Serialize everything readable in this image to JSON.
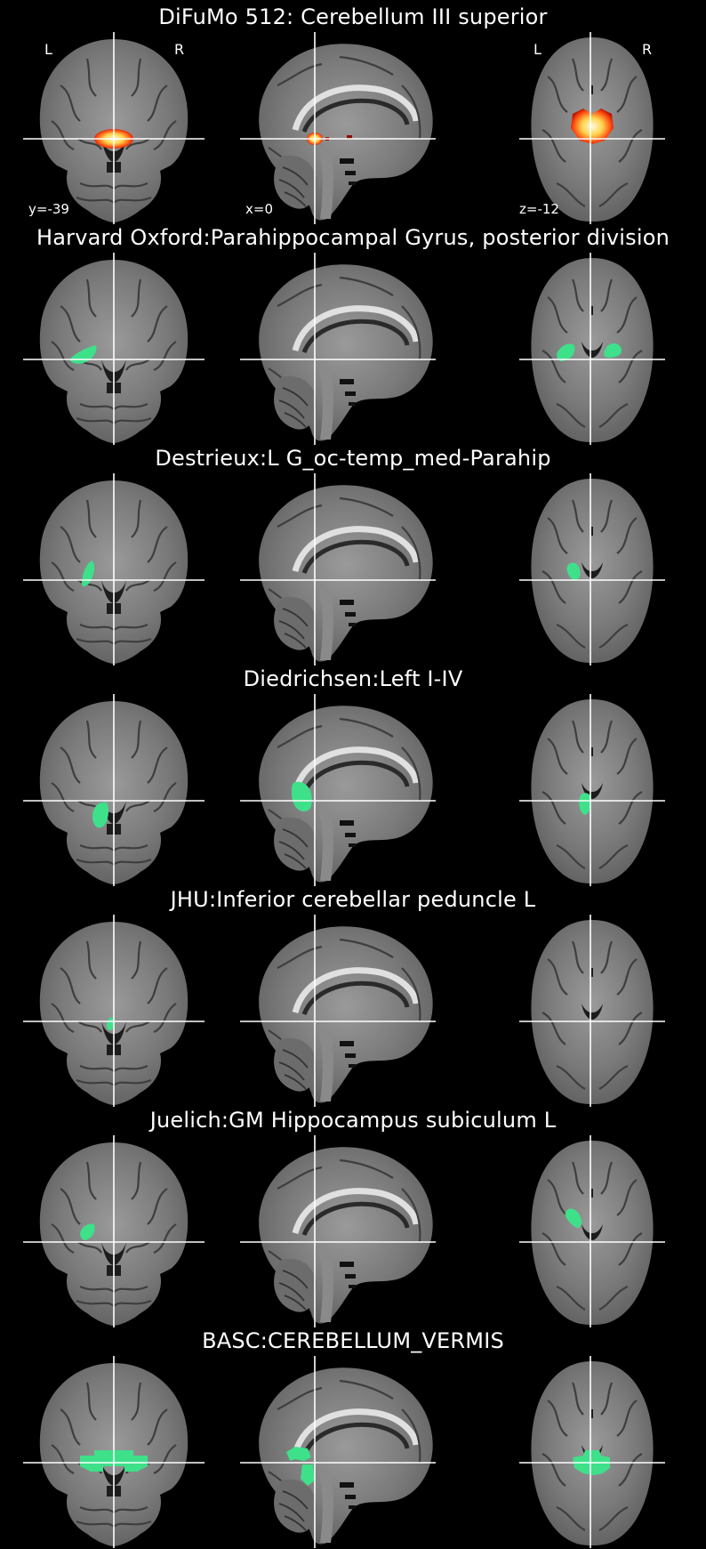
{
  "panels": [
    {
      "title": "DiFuMo 512: Cerebellum III superior",
      "overlay": "heat",
      "orientation": {
        "left": "L",
        "right": "R"
      },
      "coords": {
        "coronal": "y=-39",
        "sagittal": "x=0",
        "axial": "z=-12"
      }
    },
    {
      "title": "Harvard Oxford:Parahippocampal Gyrus, posterior division",
      "overlay": "harvard"
    },
    {
      "title": "Destrieux:L G_oc-temp_med-Parahip",
      "overlay": "destrieux"
    },
    {
      "title": "Diedrichsen:Left I-IV",
      "overlay": "diedrichsen"
    },
    {
      "title": "JHU:Inferior cerebellar peduncle L",
      "overlay": "jhu"
    },
    {
      "title": "Juelich:GM Hippocampus subiculum L",
      "overlay": "juelich"
    },
    {
      "title": "BASC:CEREBELLUM_VERMIS",
      "overlay": "basc"
    }
  ],
  "colors": {
    "background": "#000000",
    "crosshair": "#ffffff",
    "atlas_region": "#3ee08a",
    "heat_outer": "#ff2a00",
    "heat_inner": "#fff2a8"
  }
}
